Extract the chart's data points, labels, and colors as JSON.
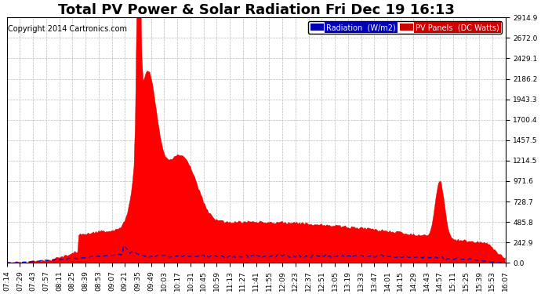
{
  "title": "Total PV Power & Solar Radiation Fri Dec 19 16:13",
  "copyright": "Copyright 2014 Cartronics.com",
  "legend_radiation": "Radiation  (W/m2)",
  "legend_pv": "PV Panels  (DC Watts)",
  "legend_radiation_bg": "#0000bb",
  "legend_pv_bg": "#cc0000",
  "legend_radiation_text": "#ffffff",
  "legend_pv_text": "#ffffff",
  "background_color": "#ffffff",
  "plot_bg_color": "#ffffff",
  "grid_color": "#bbbbbb",
  "pv_fill_color": "#ff0000",
  "pv_line_color": "#cc0000",
  "radiation_line_color": "#0000cc",
  "ymin": 0.0,
  "ymax": 2914.9,
  "yticks": [
    0.0,
    242.9,
    485.8,
    728.7,
    971.6,
    1214.5,
    1457.5,
    1700.4,
    1943.3,
    2186.2,
    2429.1,
    2672.0,
    2914.9
  ],
  "title_fontsize": 13,
  "copyright_fontsize": 7,
  "tick_fontsize": 6.5,
  "legend_fontsize": 7,
  "time_labels": [
    "07:14",
    "07:29",
    "07:43",
    "07:57",
    "08:11",
    "08:25",
    "08:39",
    "08:53",
    "09:07",
    "09:21",
    "09:35",
    "09:49",
    "10:03",
    "10:17",
    "10:31",
    "10:45",
    "10:59",
    "11:13",
    "11:27",
    "11:41",
    "11:55",
    "12:09",
    "12:23",
    "12:37",
    "12:51",
    "13:05",
    "13:19",
    "13:33",
    "13:47",
    "14:01",
    "14:15",
    "14:29",
    "14:43",
    "14:57",
    "15:11",
    "15:25",
    "15:39",
    "15:53",
    "16:07"
  ]
}
